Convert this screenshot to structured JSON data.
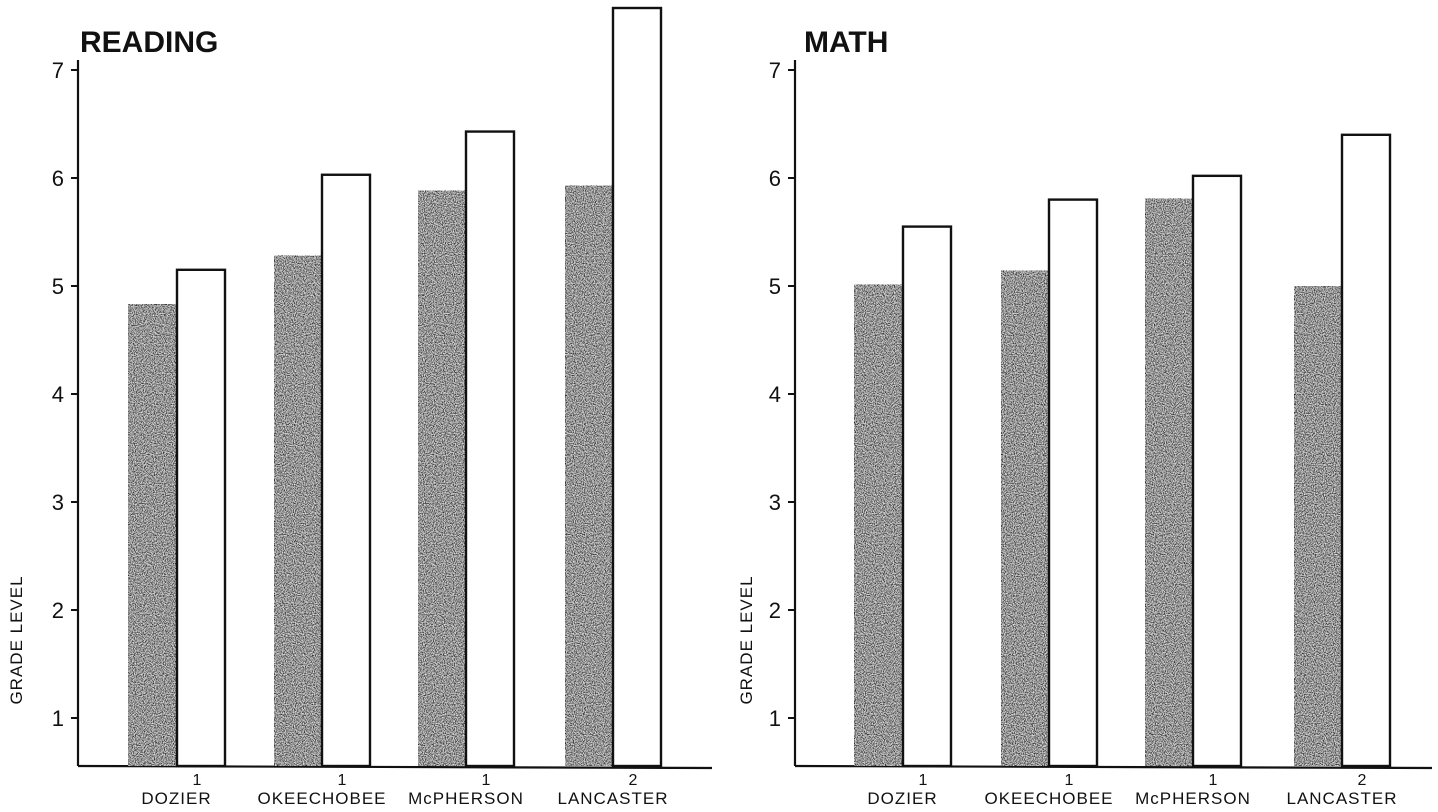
{
  "chart_data": [
    {
      "type": "bar",
      "title": "READING",
      "ylabel": "GRADE LEVEL",
      "xlabel": "",
      "ylim": [
        0.5,
        7.6
      ],
      "yticks": [
        "1",
        "2",
        "3",
        "4",
        "5",
        "6",
        "7"
      ],
      "categories": [
        "DOZIER",
        "OKEECHOBEE",
        "McPHERSON",
        "LANCASTER"
      ],
      "category_notes": [
        "1",
        "1",
        "1",
        "2"
      ],
      "series": [
        {
          "values": [
            4.83,
            5.28,
            5.88,
            5.93
          ],
          "style": "dark"
        },
        {
          "values": [
            5.15,
            6.03,
            6.43,
            7.6
          ],
          "style": "open"
        }
      ],
      "grid": false
    },
    {
      "type": "bar",
      "title": "MATH",
      "ylabel": "GRADE LEVEL",
      "xlabel": "",
      "ylim": [
        0.5,
        7.6
      ],
      "yticks": [
        "1",
        "2",
        "3",
        "4",
        "5",
        "6",
        "7"
      ],
      "categories": [
        "DOZIER",
        "OKEECHOBEE",
        "McPHERSON",
        "LANCASTER"
      ],
      "category_notes": [
        "1",
        "1",
        "1",
        "2"
      ],
      "series": [
        {
          "values": [
            5.01,
            5.14,
            5.81,
            5.0
          ],
          "style": "dark"
        },
        {
          "values": [
            5.55,
            5.8,
            6.02,
            6.4
          ],
          "style": "open"
        }
      ],
      "grid": false
    }
  ],
  "colors": {
    "dark_bar": "#3a3a3a",
    "open_bar": "#ffffff",
    "axis": "#111111"
  }
}
